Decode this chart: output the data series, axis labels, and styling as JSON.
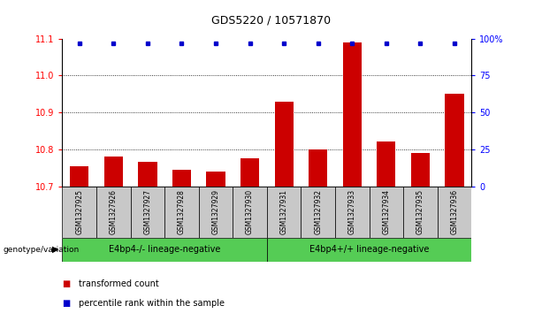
{
  "title": "GDS5220 / 10571870",
  "samples": [
    "GSM1327925",
    "GSM1327926",
    "GSM1327927",
    "GSM1327928",
    "GSM1327929",
    "GSM1327930",
    "GSM1327931",
    "GSM1327932",
    "GSM1327933",
    "GSM1327934",
    "GSM1327935",
    "GSM1327936"
  ],
  "transformed_counts": [
    10.755,
    10.78,
    10.765,
    10.745,
    10.74,
    10.775,
    10.93,
    10.8,
    11.09,
    10.82,
    10.79,
    10.95
  ],
  "percentile_ranks": [
    97,
    97,
    97,
    97,
    97,
    97,
    97,
    97,
    97,
    97,
    97,
    97
  ],
  "ylim_left": [
    10.7,
    11.1
  ],
  "ylim_right": [
    0,
    100
  ],
  "yticks_left": [
    10.7,
    10.8,
    10.9,
    11.0,
    11.1
  ],
  "yticks_right": [
    0,
    25,
    50,
    75,
    100
  ],
  "bar_color": "#cc0000",
  "dot_color": "#0000cc",
  "group1_label": "E4bp4-/- lineage-negative",
  "group2_label": "E4bp4+/+ lineage-negative",
  "group1_indices": [
    0,
    1,
    2,
    3,
    4,
    5
  ],
  "group2_indices": [
    6,
    7,
    8,
    9,
    10,
    11
  ],
  "genotype_label": "genotype/variation",
  "legend_bar_label": "transformed count",
  "legend_dot_label": "percentile rank within the sample",
  "group_bg_color": "#c8c8c8",
  "group_green_color": "#55cc55",
  "title_fontsize": 9,
  "tick_fontsize": 7,
  "sample_fontsize": 5.5,
  "group_fontsize": 7,
  "legend_fontsize": 7
}
